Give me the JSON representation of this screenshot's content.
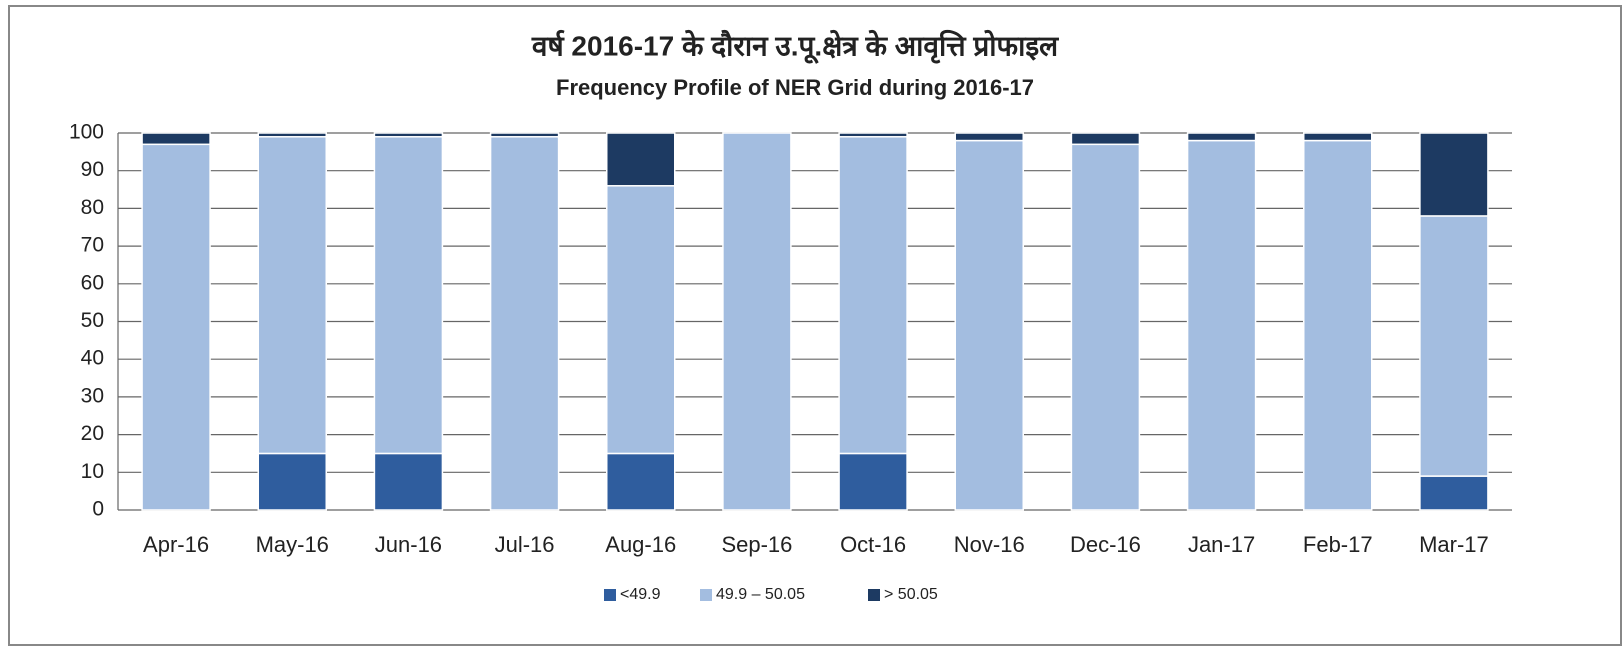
{
  "chart_data": {
    "type": "stacked_bar",
    "title": "वर्ष 2016-17 के दौरान उ.पू.क्षेत्र के आवृत्ति प्रोफाइल",
    "subtitle": "Frequency Profile of NER Grid during 2016-17",
    "categories": [
      "Apr-16",
      "May-16",
      "Jun-16",
      "Jul-16",
      "Aug-16",
      "Sep-16",
      "Oct-16",
      "Nov-16",
      "Dec-16",
      "Jan-17",
      "Feb-17",
      "Mar-17"
    ],
    "series": [
      {
        "name": "<49.9",
        "color": "#2f5d9e",
        "values": [
          0,
          15,
          15,
          0,
          15,
          0,
          15,
          0,
          0,
          0,
          0,
          9
        ]
      },
      {
        "name": "49.9 – 50.05",
        "color": "#a3bde0",
        "values": [
          97,
          84,
          84,
          99,
          71,
          100,
          84,
          98,
          97,
          98,
          98,
          69
        ]
      },
      {
        "name": "> 50.05",
        "color": "#1d3a62",
        "values": [
          3,
          1,
          1,
          1,
          14,
          0,
          1,
          2,
          3,
          2,
          2,
          22
        ]
      }
    ],
    "ylim": [
      0,
      100
    ],
    "yticks": [
      0,
      10,
      20,
      30,
      40,
      50,
      60,
      70,
      80,
      90,
      100
    ],
    "grid": true,
    "legend": "bottom"
  }
}
